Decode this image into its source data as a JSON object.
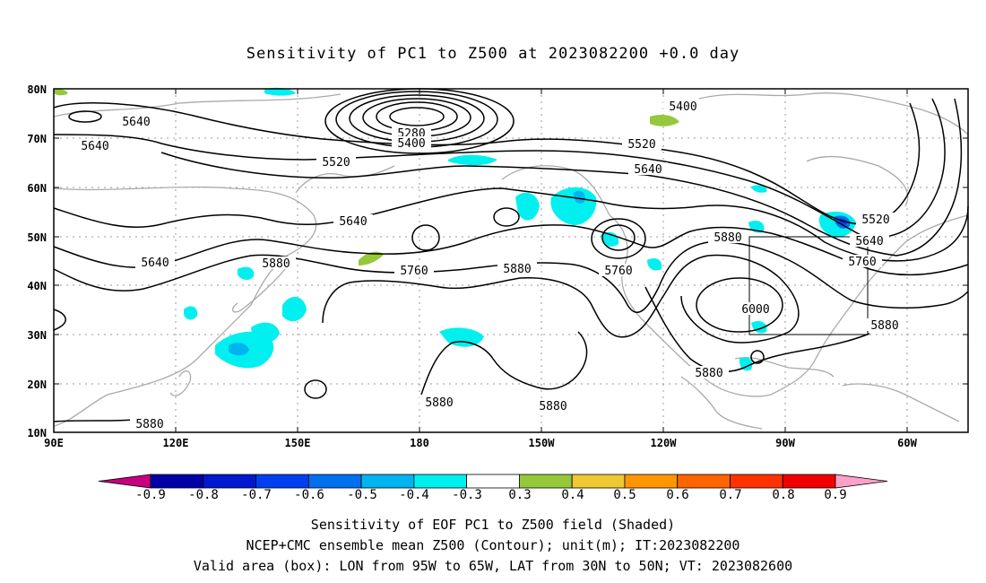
{
  "title": "Sensitivity of PC1 to Z500 at 2023082200 +0.0 day",
  "lat_labels": [
    "80N",
    "70N",
    "60N",
    "50N",
    "40N",
    "30N",
    "20N",
    "10N"
  ],
  "lon_labels": [
    "90E",
    "120E",
    "150E",
    "180",
    "150W",
    "120W",
    "90W",
    "60W"
  ],
  "contour_labels": [
    {
      "text": "5640",
      "k": "a"
    },
    {
      "text": "5640",
      "k": "b"
    },
    {
      "text": "5280",
      "k": "c"
    },
    {
      "text": "5400",
      "k": "d"
    },
    {
      "text": "5400",
      "k": "e"
    },
    {
      "text": "5520",
      "k": "f"
    },
    {
      "text": "5520",
      "k": "g"
    },
    {
      "text": "5640",
      "k": "h"
    },
    {
      "text": "5640",
      "k": "i"
    },
    {
      "text": "5520",
      "k": "j"
    },
    {
      "text": "5640",
      "k": "k"
    },
    {
      "text": "5760",
      "k": "l"
    },
    {
      "text": "5880",
      "k": "m"
    },
    {
      "text": "5640",
      "k": "n"
    },
    {
      "text": "5880",
      "k": "o"
    },
    {
      "text": "5760",
      "k": "p"
    },
    {
      "text": "5880",
      "k": "q"
    },
    {
      "text": "5760",
      "k": "r"
    },
    {
      "text": "6000",
      "k": "s"
    },
    {
      "text": "5880",
      "k": "t"
    },
    {
      "text": "5880",
      "k": "u"
    },
    {
      "text": "5880",
      "k": "v"
    },
    {
      "text": "5880",
      "k": "w"
    },
    {
      "text": "5880",
      "k": "x"
    }
  ],
  "colorbar": {
    "labels": [
      "-0.9",
      "-0.8",
      "-0.7",
      "-0.6",
      "-0.5",
      "-0.4",
      "-0.3",
      "0.3",
      "0.4",
      "0.5",
      "0.6",
      "0.7",
      "0.8",
      "0.9"
    ],
    "colors": [
      "#c8007f",
      "#0000a8",
      "#0018d0",
      "#0040f0",
      "#0070f0",
      "#00b4f0",
      "#00f0f0",
      "#ffffff",
      "#96c83c",
      "#f0c832",
      "#ff9600",
      "#ff6400",
      "#ff3200",
      "#f00000",
      "#ffa0c8"
    ]
  },
  "caption": [
    "Sensitivity of EOF PC1 to Z500 field (Shaded)",
    "NCEP+CMC ensemble mean Z500 (Contour); unit(m); IT:2023082200",
    "Valid area (box): LON from 95W to 65W, LAT from 30N to 50N; VT: 2023082600"
  ]
}
